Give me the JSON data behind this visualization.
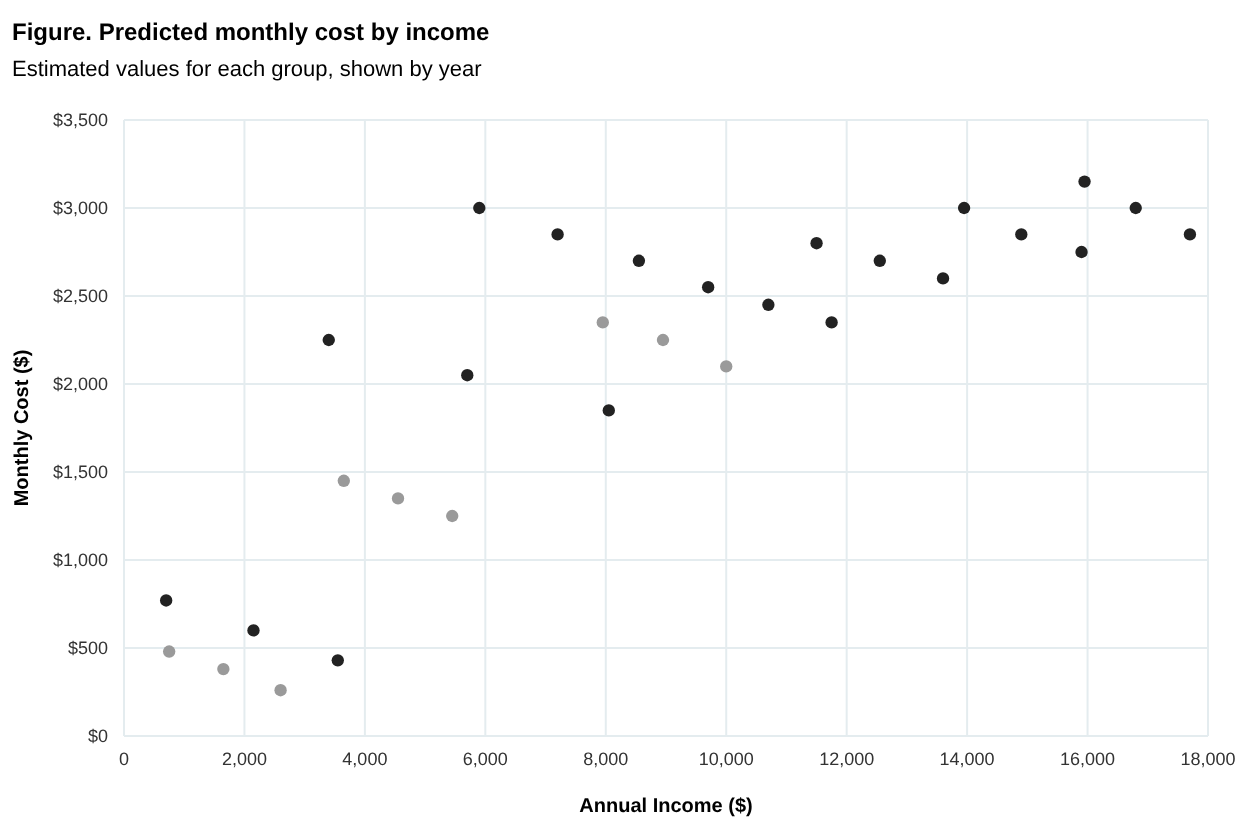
{
  "chart_data": {
    "type": "scatter",
    "title": "Figure. Predicted monthly cost by income",
    "subtitle": "Estimated values for each group, shown by year",
    "xlabel": "Annual Income ($)",
    "ylabel": "Monthly Cost ($)",
    "series": [
      {
        "color": "#222222",
        "x": [
          700,
          2150,
          3550,
          3400,
          5700,
          8050,
          5900,
          7200,
          8550,
          9700,
          10700,
          11750,
          11500,
          12550,
          13600,
          13950,
          14900,
          15900,
          15950,
          16800,
          17700
        ],
        "values": [
          770,
          600,
          430,
          2250,
          2050,
          1850,
          3000,
          2850,
          2700,
          2550,
          2450,
          2350,
          2800,
          2700,
          2600,
          3000,
          2850,
          2750,
          3150,
          3000,
          2850
        ]
      },
      {
        "color": "#9a9a9a",
        "x": [
          750,
          1650,
          2600,
          3650,
          4550,
          5450,
          7950,
          8950,
          10000
        ],
        "values": [
          480,
          380,
          260,
          1450,
          1350,
          1250,
          2350,
          2250,
          2100
        ]
      }
    ],
    "xlim": [
      0,
      18000
    ],
    "xticks": [
      {
        "value": 0,
        "label": "0"
      },
      {
        "value": 2000,
        "label": "2,000"
      },
      {
        "value": 4000,
        "label": "4,000"
      },
      {
        "value": 6000,
        "label": "6,000"
      },
      {
        "value": 8000,
        "label": "8,000"
      },
      {
        "value": 10000,
        "label": "10,000"
      },
      {
        "value": 12000,
        "label": "12,000"
      },
      {
        "value": 14000,
        "label": "14,000"
      },
      {
        "value": 16000,
        "label": "16,000"
      },
      {
        "value": 18000,
        "label": "18,000"
      }
    ],
    "ylim": [
      0,
      3500
    ],
    "yticks": [
      {
        "value": 0,
        "label": "$0"
      },
      {
        "value": 500,
        "label": "$500"
      },
      {
        "value": 1000,
        "label": "$1,000"
      },
      {
        "value": 1500,
        "label": "$1,500"
      },
      {
        "value": 2000,
        "label": "$2,000"
      },
      {
        "value": 2500,
        "label": "$2,500"
      },
      {
        "value": 3000,
        "label": "$3,000"
      },
      {
        "value": 3500,
        "label": "$3,500"
      }
    ],
    "grid": true,
    "marker": "circle"
  }
}
